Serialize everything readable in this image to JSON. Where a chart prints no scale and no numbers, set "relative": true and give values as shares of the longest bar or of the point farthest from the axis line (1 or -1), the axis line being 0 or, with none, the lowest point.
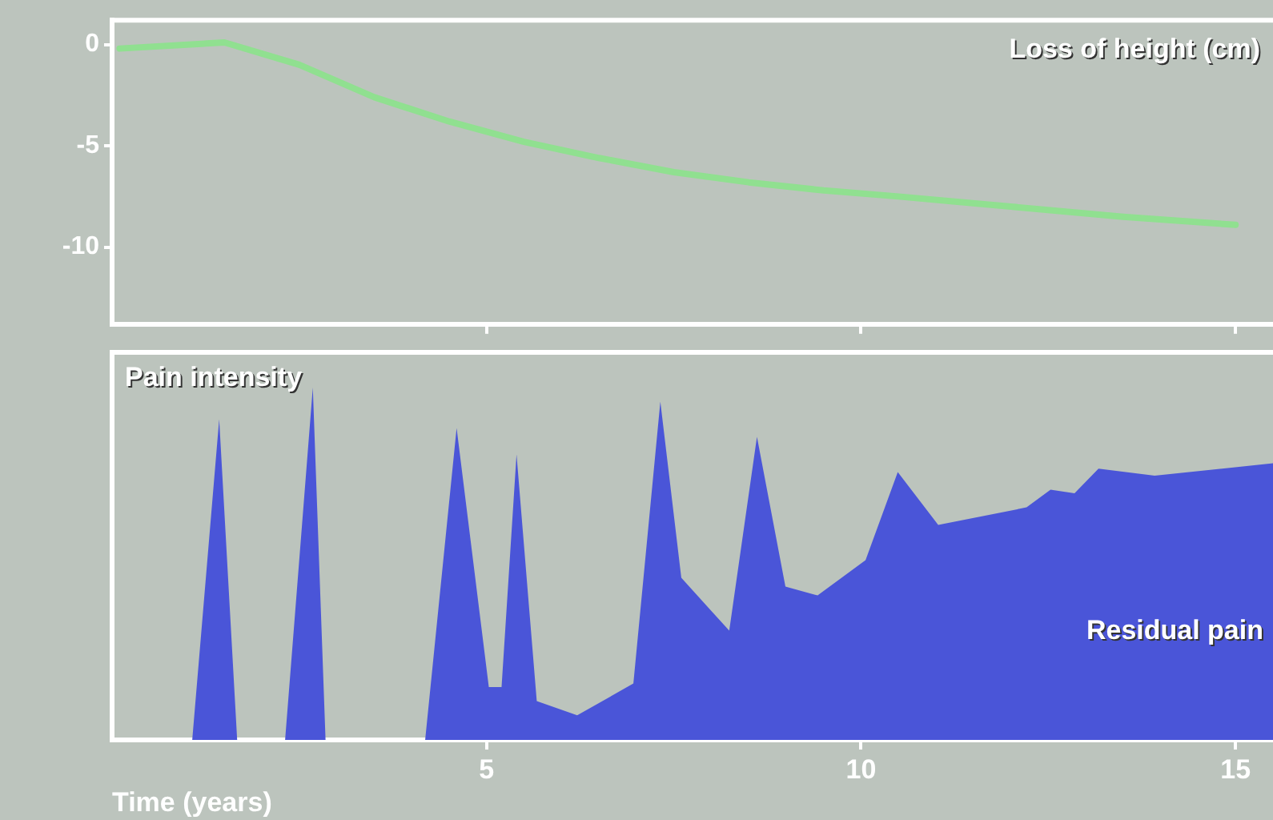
{
  "chart_data": [
    {
      "type": "line",
      "x": [
        0.1,
        1.5,
        2.5,
        3.5,
        4.5,
        5.5,
        6.5,
        7.5,
        8.5,
        9.5,
        10.5,
        12,
        13.5,
        15
      ],
      "values": [
        -0.2,
        0.1,
        -1,
        -2.6,
        -3.8,
        -4.8,
        -5.6,
        -6.3,
        -6.8,
        -7.2,
        -7.5,
        -8,
        -8.5,
        -8.9
      ],
      "color": "#90e090",
      "xlim": [
        0,
        15.5
      ],
      "xticks": [
        5,
        10,
        15
      ],
      "ylim": [
        -13.8,
        1.2
      ],
      "yticks": [
        0,
        -5,
        -10
      ],
      "tick_labels": "y",
      "annotations": [
        "Loss of height (cm)"
      ]
    },
    {
      "type": "area",
      "relative": true,
      "x": [
        1.07,
        1.43,
        1.67,
        2.31,
        2.68,
        2.85,
        4.18,
        4.6,
        5.03,
        5.2,
        5.4,
        5.67,
        6.21,
        6.96,
        7.32,
        7.6,
        8.24,
        8.61,
        8.99,
        9.42,
        10.06,
        10.49,
        11.03,
        12.21,
        12.53,
        12.85,
        13.17,
        13.92,
        15.5
      ],
      "values": [
        0,
        0.91,
        0,
        0,
        1,
        0,
        0,
        0.885,
        0.15,
        0.15,
        0.81,
        0.11,
        0.07,
        0.16,
        0.96,
        0.46,
        0.31,
        0.86,
        0.435,
        0.41,
        0.51,
        0.76,
        0.61,
        0.66,
        0.71,
        0.7,
        0.77,
        0.75,
        0.785
      ],
      "color": "#4a55d8",
      "xlim": [
        0,
        15.5
      ],
      "xticks": [
        5,
        10,
        15
      ],
      "xlabel": "Time (years)",
      "tick_labels": "x",
      "annotations": [
        "Pain intensity",
        "Residual pain"
      ]
    }
  ]
}
